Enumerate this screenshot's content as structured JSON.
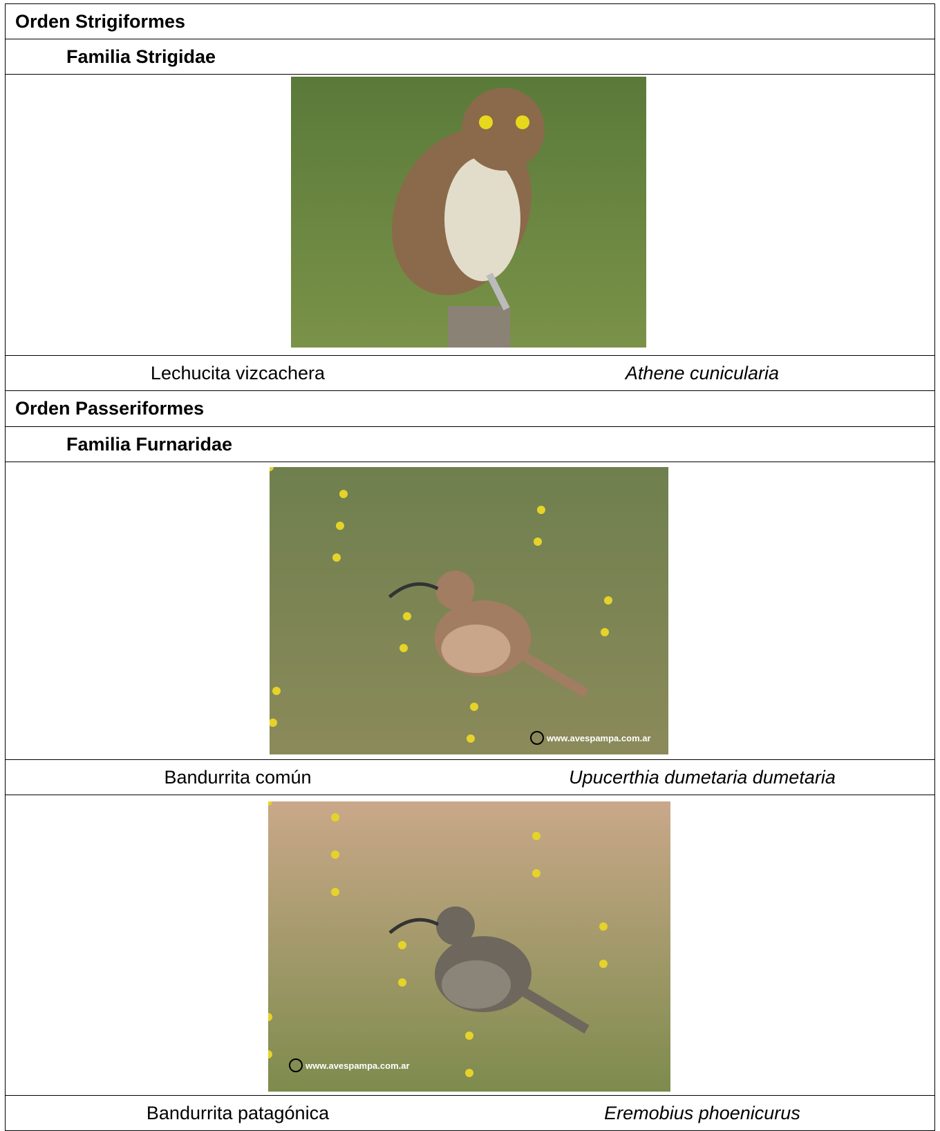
{
  "orders": [
    {
      "name": "Orden Strigiformes",
      "families": [
        {
          "name": "Familia Strigidae",
          "species": [
            {
              "common_name": "Lechucita vizcachera",
              "scientific_name": "Athene cunicularia"
            }
          ]
        }
      ]
    },
    {
      "name": "Orden Passeriformes",
      "families": [
        {
          "name": "Familia Furnaridae",
          "species": [
            {
              "common_name": "Bandurrita común",
              "scientific_name": "Upucerthia dumetaria dumetaria",
              "watermark": "www.avespampa.com.ar"
            },
            {
              "common_name": "Bandurrita patagónica",
              "scientific_name": "Eremobius phoenicurus",
              "watermark": "www.avespampa.com.ar"
            }
          ]
        }
      ]
    }
  ]
}
